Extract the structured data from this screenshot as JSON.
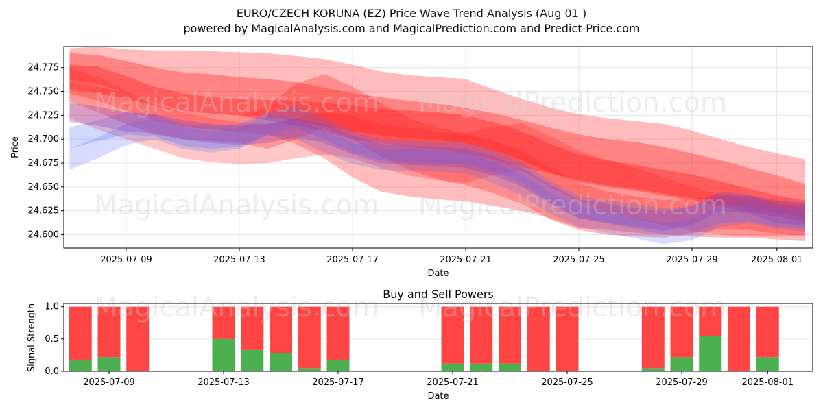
{
  "header": {
    "title": "EURO/CZECH KORUNA (EZ) Price Wave Trend Analysis (Aug 01 )",
    "subtitle": "powered by MagicalAnalysis.com and MagicalPrediction.com and Predict-Price.com"
  },
  "watermarks": [
    "MagicalAnalysis.com",
    "MagicalPrediction.com"
  ],
  "colors": {
    "red": "#ff0000",
    "blue": "#4d66ff",
    "buy": "#4caf50",
    "sell": "#ff4444",
    "grid": "#e6e6e6"
  },
  "chart_data": [
    {
      "type": "area",
      "ylabel": "Price",
      "xlabel": "Date",
      "ylim": [
        24.586,
        24.797
      ],
      "y_ticks": [
        "24.600",
        "24.625",
        "24.650",
        "24.675",
        "24.700",
        "24.725",
        "24.750",
        "24.775"
      ],
      "x_ticks": [
        "2025-07-09",
        "2025-07-13",
        "2025-07-17",
        "2025-07-21",
        "2025-07-25",
        "2025-07-29",
        "2025-08-01"
      ],
      "x": [
        "2025-07-07",
        "2025-07-08",
        "2025-07-09",
        "2025-07-10",
        "2025-07-11",
        "2025-07-12",
        "2025-07-13",
        "2025-07-14",
        "2025-07-15",
        "2025-07-16",
        "2025-07-17",
        "2025-07-18",
        "2025-07-19",
        "2025-07-20",
        "2025-07-21",
        "2025-07-22",
        "2025-07-23",
        "2025-07-24",
        "2025-07-25",
        "2025-07-26",
        "2025-07-27",
        "2025-07-28",
        "2025-07-29",
        "2025-07-30",
        "2025-07-31",
        "2025-08-01",
        "2025-08-02"
      ],
      "grid": true,
      "bands": [
        {
          "color": "red",
          "opacity": 0.3,
          "upper": [
            24.795,
            24.797,
            24.794,
            24.793,
            24.793,
            24.792,
            24.791,
            24.79,
            24.787,
            24.784,
            24.778,
            24.771,
            24.767,
            24.765,
            24.763,
            24.752,
            24.742,
            24.733,
            24.726,
            24.722,
            24.719,
            24.716,
            24.709,
            24.7,
            24.692,
            24.685,
            24.679
          ],
          "lower": [
            24.748,
            24.74,
            24.73,
            24.72,
            24.713,
            24.71,
            24.708,
            24.705,
            24.695,
            24.68,
            24.66,
            24.645,
            24.64,
            24.637,
            24.635,
            24.63,
            24.625,
            24.617,
            24.607,
            24.605,
            24.602,
            24.6,
            24.598,
            24.597,
            24.597,
            24.595,
            24.593
          ]
        },
        {
          "color": "red",
          "opacity": 0.35,
          "upper": [
            24.79,
            24.788,
            24.782,
            24.775,
            24.77,
            24.768,
            24.765,
            24.763,
            24.76,
            24.754,
            24.748,
            24.744,
            24.74,
            24.737,
            24.733,
            24.727,
            24.72,
            24.712,
            24.705,
            24.7,
            24.697,
            24.692,
            24.685,
            24.678,
            24.67,
            24.662,
            24.653
          ],
          "lower": [
            24.762,
            24.758,
            24.748,
            24.738,
            24.73,
            24.727,
            24.724,
            24.72,
            24.714,
            24.708,
            24.7,
            24.696,
            24.692,
            24.689,
            24.685,
            24.678,
            24.671,
            24.664,
            24.657,
            24.652,
            24.648,
            24.643,
            24.638,
            24.633,
            24.628,
            24.623,
            24.617
          ]
        },
        {
          "color": "red",
          "opacity": 0.4,
          "upper": [
            24.778,
            24.776,
            24.766,
            24.755,
            24.748,
            24.744,
            24.742,
            24.741,
            24.74,
            24.738,
            24.735,
            24.732,
            24.73,
            24.728,
            24.725,
            24.718,
            24.708,
            24.695,
            24.684,
            24.678,
            24.673,
            24.668,
            24.663,
            24.656,
            24.648,
            24.641,
            24.636
          ],
          "lower": [
            24.752,
            24.748,
            24.742,
            24.735,
            24.728,
            24.726,
            24.725,
            24.723,
            24.719,
            24.714,
            24.708,
            24.704,
            24.701,
            24.699,
            24.696,
            24.688,
            24.678,
            24.665,
            24.655,
            24.65,
            24.646,
            24.641,
            24.636,
            24.63,
            24.624,
            24.619,
            24.614
          ]
        },
        {
          "color": "red",
          "opacity": 0.25,
          "upper": [
            24.76,
            24.755,
            24.748,
            24.738,
            24.728,
            24.722,
            24.718,
            24.716,
            24.722,
            24.728,
            24.724,
            24.716,
            24.712,
            24.708,
            24.706,
            24.713,
            24.717,
            24.703,
            24.688,
            24.678,
            24.67,
            24.66,
            24.65,
            24.642,
            24.638,
            24.635,
            24.633
          ],
          "lower": [
            24.722,
            24.71,
            24.7,
            24.69,
            24.68,
            24.676,
            24.674,
            24.675,
            24.68,
            24.684,
            24.68,
            24.67,
            24.662,
            24.657,
            24.654,
            24.663,
            24.667,
            24.65,
            24.634,
            24.624,
            24.617,
            24.61,
            24.604,
            24.6,
            24.598,
            24.598,
            24.6
          ]
        },
        {
          "color": "red",
          "opacity": 0.3,
          "upper": [
            24.775,
            24.765,
            24.75,
            24.736,
            24.728,
            24.726,
            24.724,
            24.735,
            24.758,
            24.768,
            24.755,
            24.738,
            24.722,
            24.712,
            24.706,
            24.698,
            24.688,
            24.67,
            24.654,
            24.645,
            24.64,
            24.636,
            24.638,
            24.642,
            24.64,
            24.636,
            24.632
          ],
          "lower": [
            24.74,
            24.728,
            24.716,
            24.705,
            24.7,
            24.698,
            24.696,
            24.69,
            24.7,
            24.712,
            24.7,
            24.682,
            24.668,
            24.658,
            24.652,
            24.643,
            24.632,
            24.616,
            24.605,
            24.6,
            24.598,
            24.597,
            24.601,
            24.606,
            24.605,
            24.601,
            24.598
          ]
        },
        {
          "color": "blue",
          "opacity": 0.25,
          "upper": [
            24.712,
            24.72,
            24.728,
            24.726,
            24.716,
            24.714,
            24.716,
            24.728,
            24.735,
            24.722,
            24.708,
            24.7,
            24.698,
            24.697,
            24.696,
            24.688,
            24.676,
            24.656,
            24.64,
            24.636,
            24.632,
            24.628,
            24.63,
            24.64,
            24.642,
            24.636,
            24.634
          ],
          "lower": [
            24.69,
            24.698,
            24.705,
            24.703,
            24.693,
            24.69,
            24.692,
            24.705,
            24.712,
            24.7,
            24.686,
            24.678,
            24.676,
            24.675,
            24.674,
            24.666,
            24.654,
            24.634,
            24.618,
            24.612,
            24.606,
            24.6,
            24.602,
            24.612,
            24.614,
            24.608,
            24.606
          ]
        },
        {
          "color": "blue",
          "opacity": 0.22,
          "upper": [
            24.69,
            24.702,
            24.716,
            24.722,
            24.712,
            24.708,
            24.712,
            24.726,
            24.722,
            24.708,
            24.696,
            24.69,
            24.689,
            24.688,
            24.686,
            24.676,
            24.662,
            24.644,
            24.63,
            24.624,
            24.618,
            24.612,
            24.616,
            24.63,
            24.634,
            24.628,
            24.625
          ],
          "lower": [
            24.668,
            24.68,
            24.694,
            24.7,
            24.69,
            24.686,
            24.69,
            24.704,
            24.7,
            24.686,
            24.674,
            24.668,
            24.667,
            24.666,
            24.664,
            24.654,
            24.64,
            24.622,
            24.608,
            24.602,
            24.596,
            24.59,
            24.594,
            24.608,
            24.612,
            24.606,
            24.603
          ]
        },
        {
          "color": "purple",
          "opacity": 0.3,
          "upper": [
            24.738,
            24.734,
            24.728,
            24.726,
            24.72,
            24.716,
            24.714,
            24.716,
            24.722,
            24.716,
            24.704,
            24.695,
            24.693,
            24.692,
            24.69,
            24.682,
            24.67,
            24.652,
            24.637,
            24.632,
            24.628,
            24.624,
            24.63,
            24.645,
            24.642,
            24.632,
            24.63
          ],
          "lower": [
            24.718,
            24.714,
            24.708,
            24.706,
            24.7,
            24.696,
            24.694,
            24.696,
            24.702,
            24.696,
            24.684,
            24.675,
            24.673,
            24.672,
            24.67,
            24.662,
            24.65,
            24.632,
            24.617,
            24.612,
            24.608,
            24.604,
            24.61,
            24.625,
            24.622,
            24.612,
            24.61
          ]
        }
      ]
    },
    {
      "type": "bar",
      "title": "Buy and Sell Powers",
      "ylabel": "Signal Strength",
      "xlabel": "Date",
      "ylim": [
        0,
        1.05
      ],
      "y_ticks": [
        "0.0",
        "0.5",
        "1.0"
      ],
      "x_ticks": [
        "2025-07-09",
        "2025-07-13",
        "2025-07-17",
        "2025-07-21",
        "2025-07-25",
        "2025-07-29",
        "2025-08-01"
      ],
      "grid": true,
      "categories": [
        "2025-07-08",
        "2025-07-09",
        "2025-07-10",
        "2025-07-13",
        "2025-07-14",
        "2025-07-15",
        "2025-07-16",
        "2025-07-17",
        "2025-07-21",
        "2025-07-22",
        "2025-07-23",
        "2025-07-24",
        "2025-07-25",
        "2025-07-28",
        "2025-07-29",
        "2025-07-30",
        "2025-07-31",
        "2025-08-01"
      ],
      "series": [
        {
          "values": [
            0.17,
            0.22,
            0.0,
            0.5,
            0.33,
            0.28,
            0.05,
            0.17,
            0.12,
            0.12,
            0.12,
            0.0,
            0.0,
            0.05,
            0.22,
            0.55,
            0.0,
            0.22
          ]
        },
        {
          "values": [
            0.83,
            0.78,
            1.0,
            0.5,
            0.67,
            0.72,
            0.95,
            0.83,
            0.88,
            0.88,
            0.88,
            1.0,
            1.0,
            0.95,
            0.78,
            0.45,
            1.0,
            0.78
          ]
        }
      ]
    }
  ]
}
